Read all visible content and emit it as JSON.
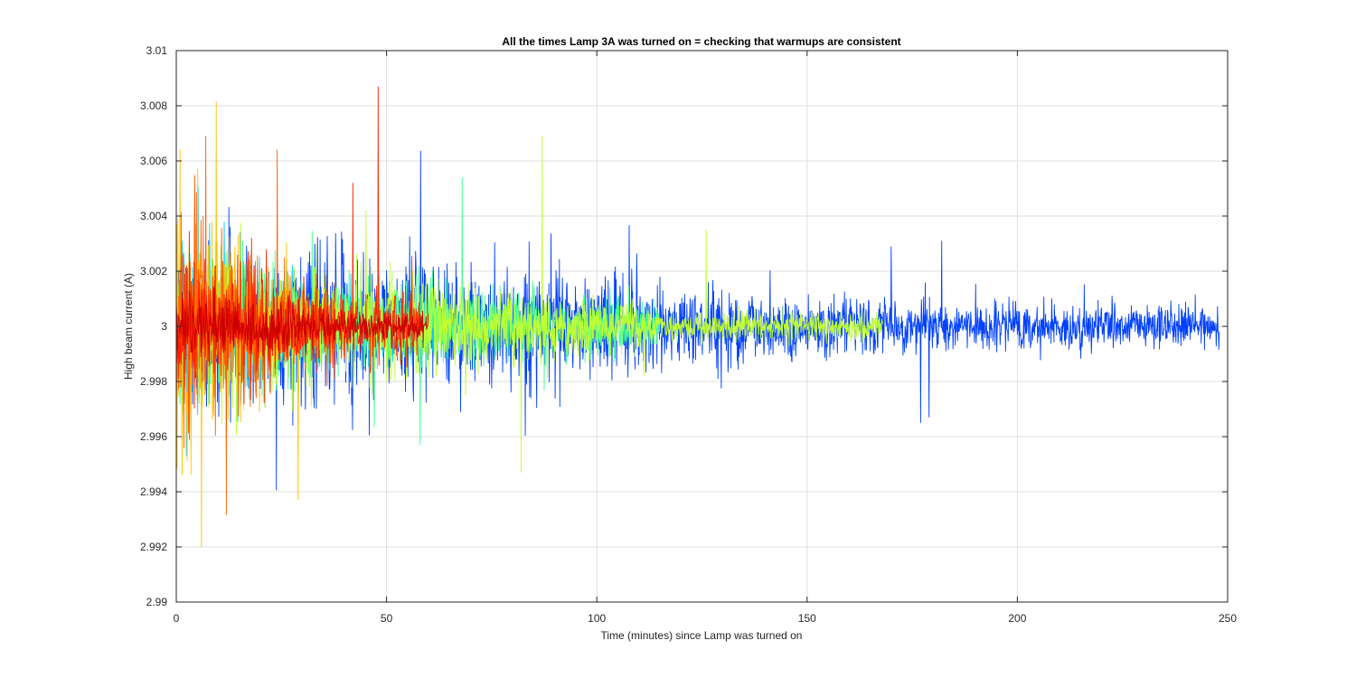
{
  "chart_data": {
    "type": "line",
    "title": "All the times Lamp 3A was turned on = checking that warmups are consistent",
    "xlabel": "Time (minutes) since Lamp was turned on",
    "ylabel": "High beam current (A)",
    "xlim": [
      0,
      250
    ],
    "ylim": [
      2.99,
      3.01
    ],
    "xticks": [
      0,
      50,
      100,
      150,
      200,
      250
    ],
    "xtick_labels": [
      "0",
      "50",
      "100",
      "150",
      "200",
      "250"
    ],
    "yticks": [
      2.99,
      2.992,
      2.994,
      2.996,
      2.998,
      3.0,
      3.002,
      3.004,
      3.006,
      3.008,
      3.01
    ],
    "ytick_labels": [
      "2.99",
      "2.992",
      "2.994",
      "2.996",
      "2.998",
      "3",
      "3.002",
      "3.004",
      "3.006",
      "3.008",
      "3.01"
    ],
    "grid": true,
    "legend": "none",
    "colormap": "jet",
    "series": [
      {
        "color": "#0040ff",
        "x_end": 248,
        "center": 3.0,
        "noise_start": 0.0035,
        "noise_end": 0.0009,
        "spikes": [
          [
            170,
            3.0029
          ],
          [
            177,
            2.9965
          ],
          [
            182,
            3.0031
          ],
          [
            179,
            2.9967
          ]
        ]
      },
      {
        "color": "#00d0ff",
        "x_end": 65,
        "center": 3.0,
        "noise_start": 0.0035,
        "noise_end": 0.0012
      },
      {
        "color": "#40ff90",
        "x_end": 115,
        "center": 3.0,
        "noise_start": 0.003,
        "noise_end": 0.0012,
        "spikes": [
          [
            68,
            3.0054
          ],
          [
            58,
            2.9957
          ]
        ]
      },
      {
        "color": "#c0ff30",
        "x_end": 168,
        "center": 3.0,
        "noise_start": 0.003,
        "noise_end": 0.0006,
        "spikes": [
          [
            87,
            3.0069
          ],
          [
            82,
            2.9947
          ],
          [
            126,
            3.0035
          ]
        ]
      },
      {
        "color": "#ffc000",
        "x_end": 30,
        "center": 3.0,
        "noise_start": 0.0055,
        "noise_end": 0.002,
        "spikes": [
          [
            6,
            2.992
          ],
          [
            29,
            2.9937
          ]
        ]
      },
      {
        "color": "#ff6000",
        "x_end": 38,
        "center": 3.0,
        "noise_start": 0.0045,
        "noise_end": 0.0018,
        "spikes": [
          [
            7,
            3.0069
          ],
          [
            24,
            3.0064
          ]
        ]
      },
      {
        "color": "#ff2000",
        "x_end": 58,
        "center": 3.0,
        "noise_start": 0.003,
        "noise_end": 0.0012,
        "spikes": [
          [
            48,
            3.0087
          ],
          [
            42,
            3.0052
          ]
        ]
      },
      {
        "color": "#cc0000",
        "x_end": 60,
        "center": 3.0,
        "noise_start": 0.0015,
        "noise_end": 0.0006
      }
    ]
  }
}
